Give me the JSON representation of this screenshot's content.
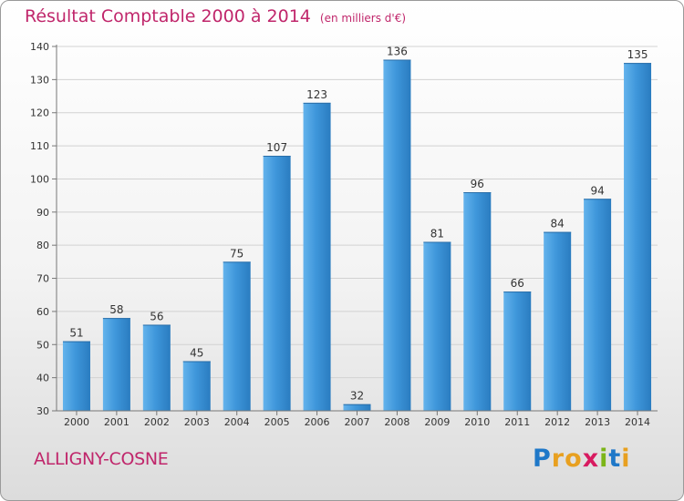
{
  "title": "Résultat Comptable 2000 à 2014",
  "subtitle": "(en milliers d'€)",
  "town": "ALLIGNY-COSNE",
  "logo": {
    "letters": [
      "P",
      "r",
      "o",
      "x",
      "i",
      "t",
      "i"
    ],
    "colors": [
      "#1f78c8",
      "#e8a020",
      "#e8a020",
      "#d81b60",
      "#7cb518",
      "#1f78c8",
      "#e8a020"
    ]
  },
  "colors": {
    "bar": "#3f97db",
    "bar_light": "#64b3ec",
    "bar_dark": "#2a7cc0",
    "title": "#c0266b"
  },
  "chart_data": {
    "type": "bar",
    "title": "Résultat Comptable 2000 à 2014",
    "xlabel": "",
    "ylabel": "",
    "categories": [
      "2000",
      "2001",
      "2002",
      "2003",
      "2004",
      "2005",
      "2006",
      "2007",
      "2008",
      "2009",
      "2010",
      "2011",
      "2012",
      "2013",
      "2014"
    ],
    "values": [
      51,
      58,
      56,
      45,
      75,
      107,
      123,
      32,
      136,
      81,
      96,
      66,
      84,
      94,
      135
    ],
    "ylim": [
      30,
      140
    ],
    "yticks": [
      30,
      40,
      50,
      60,
      70,
      80,
      90,
      100,
      110,
      120,
      130,
      140
    ],
    "grid": true,
    "data_labels": true
  }
}
